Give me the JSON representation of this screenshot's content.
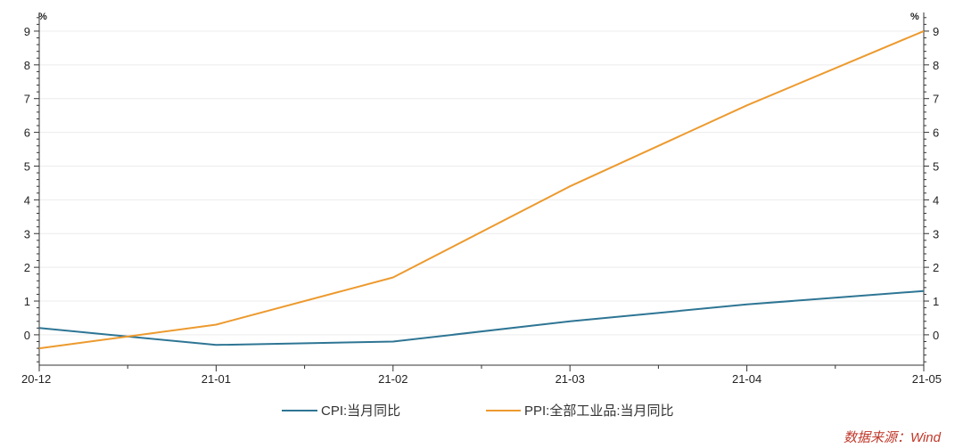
{
  "chart_data": {
    "type": "line",
    "x": [
      "20-12",
      "21-01",
      "21-02",
      "21-03",
      "21-04",
      "21-05"
    ],
    "y_left": {
      "unit": "%",
      "ticks": [
        0,
        1,
        2,
        3,
        4,
        5,
        6,
        7,
        8,
        9
      ],
      "ylim": [
        -0.9,
        9.5
      ]
    },
    "y_right": {
      "unit": "%",
      "ticks": [
        0,
        1,
        2,
        3,
        4,
        5,
        6,
        7,
        8,
        9
      ],
      "ylim": [
        -0.9,
        9.5
      ]
    },
    "grid": true,
    "legend_position": "bottom",
    "series": [
      {
        "name": "CPI:当月同比",
        "color": "#2e7594",
        "axis": "left",
        "values": [
          0.2,
          -0.3,
          -0.2,
          0.4,
          0.9,
          1.3
        ]
      },
      {
        "name": "PPI:全部工业品:当月同比",
        "color": "#ed9a2e",
        "axis": "right",
        "values": [
          -0.4,
          0.3,
          1.7,
          4.4,
          6.8,
          9.0
        ]
      }
    ]
  },
  "source_note": "数据来源：Wind"
}
